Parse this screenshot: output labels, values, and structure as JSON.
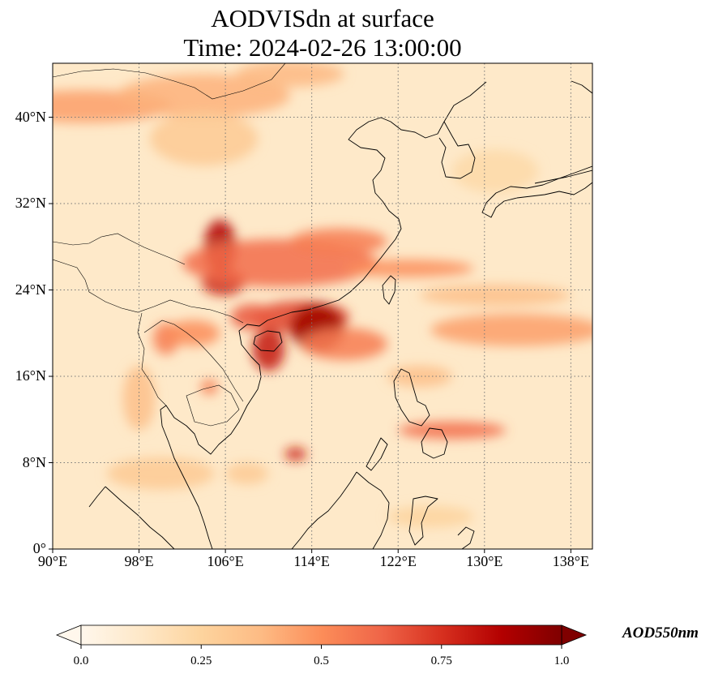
{
  "title": {
    "line1": "AODVISdn at surface",
    "line2": "Time: 2024-02-26 13:00:00"
  },
  "map": {
    "projection": "PlateCarree",
    "extent": {
      "lon_min": 90,
      "lon_max": 140,
      "lat_min": 0,
      "lat_max": 45
    },
    "gridlines": {
      "style": "dotted",
      "color": "#777777"
    },
    "lat_ticks": [
      {
        "value": 0,
        "label": "0°"
      },
      {
        "value": 8,
        "label": "8°N"
      },
      {
        "value": 16,
        "label": "16°N"
      },
      {
        "value": 24,
        "label": "24°N"
      },
      {
        "value": 32,
        "label": "32°N"
      },
      {
        "value": 40,
        "label": "40°N"
      }
    ],
    "lon_ticks": [
      {
        "value": 90,
        "label": "90°E"
      },
      {
        "value": 98,
        "label": "98°E"
      },
      {
        "value": 106,
        "label": "106°E"
      },
      {
        "value": 114,
        "label": "114°E"
      },
      {
        "value": 122,
        "label": "122°E"
      },
      {
        "value": 130,
        "label": "130°E"
      },
      {
        "value": 138,
        "label": "138°E"
      }
    ],
    "aod_features": [
      {
        "lon": 93,
        "lat": 41,
        "rx": 8,
        "ry": 1.5,
        "value": 0.45
      },
      {
        "lon": 104,
        "lat": 42,
        "rx": 8,
        "ry": 2,
        "value": 0.4
      },
      {
        "lon": 112,
        "lat": 44,
        "rx": 5,
        "ry": 1.2,
        "value": 0.38
      },
      {
        "lon": 104,
        "lat": 38,
        "rx": 5,
        "ry": 2.5,
        "value": 0.3
      },
      {
        "lon": 105.5,
        "lat": 28,
        "rx": 1.5,
        "ry": 2.5,
        "value": 0.88
      },
      {
        "lon": 105.8,
        "lat": 24.7,
        "rx": 2,
        "ry": 1.2,
        "value": 0.8
      },
      {
        "lon": 111,
        "lat": 26.5,
        "rx": 9,
        "ry": 2.2,
        "value": 0.6
      },
      {
        "lon": 116.5,
        "lat": 28.5,
        "rx": 4.5,
        "ry": 1.2,
        "value": 0.55
      },
      {
        "lon": 113,
        "lat": 21.5,
        "rx": 4.5,
        "ry": 1.5,
        "value": 0.7
      },
      {
        "lon": 114.5,
        "lat": 20.5,
        "rx": 2.5,
        "ry": 2.2,
        "value": 0.92
      },
      {
        "lon": 110,
        "lat": 18.5,
        "rx": 1.5,
        "ry": 2,
        "value": 0.82
      },
      {
        "lon": 108.5,
        "lat": 21.5,
        "rx": 2,
        "ry": 1.2,
        "value": 0.65
      },
      {
        "lon": 117,
        "lat": 19,
        "rx": 4,
        "ry": 1.5,
        "value": 0.55
      },
      {
        "lon": 100.5,
        "lat": 19.5,
        "rx": 1.2,
        "ry": 1.5,
        "value": 0.55
      },
      {
        "lon": 103,
        "lat": 20,
        "rx": 2.5,
        "ry": 1.2,
        "value": 0.5
      },
      {
        "lon": 98,
        "lat": 14,
        "rx": 1.5,
        "ry": 3,
        "value": 0.35
      },
      {
        "lon": 104.5,
        "lat": 15,
        "rx": 0.8,
        "ry": 0.7,
        "value": 0.55
      },
      {
        "lon": 112.5,
        "lat": 8.8,
        "rx": 1,
        "ry": 0.6,
        "value": 0.8
      },
      {
        "lon": 127,
        "lat": 11,
        "rx": 5,
        "ry": 0.8,
        "value": 0.6
      },
      {
        "lon": 124,
        "lat": 16,
        "rx": 3,
        "ry": 1,
        "value": 0.35
      },
      {
        "lon": 133,
        "lat": 20.3,
        "rx": 8,
        "ry": 1.5,
        "value": 0.45
      },
      {
        "lon": 131,
        "lat": 23.5,
        "rx": 7,
        "ry": 1,
        "value": 0.35
      },
      {
        "lon": 123,
        "lat": 26,
        "rx": 6,
        "ry": 0.8,
        "value": 0.5
      },
      {
        "lon": 100,
        "lat": 7,
        "rx": 5,
        "ry": 1.5,
        "value": 0.3
      },
      {
        "lon": 108,
        "lat": 7,
        "rx": 2,
        "ry": 1,
        "value": 0.3
      },
      {
        "lon": 125,
        "lat": 3,
        "rx": 4,
        "ry": 1,
        "value": 0.25
      },
      {
        "lon": 131,
        "lat": 35,
        "rx": 4,
        "ry": 2,
        "value": 0.22
      }
    ]
  },
  "colorbar": {
    "label": "AOD550nm",
    "min": 0.0,
    "max": 1.0,
    "extend": "both",
    "colormap": "OrRd",
    "stops": [
      "#fff7ec",
      "#fee8c8",
      "#fdd49e",
      "#fdbb84",
      "#fc8d59",
      "#ef6548",
      "#d7301f",
      "#b30000",
      "#7f0000"
    ],
    "ticks": [
      {
        "value": 0.0,
        "label": "0.0"
      },
      {
        "value": 0.25,
        "label": "0.25"
      },
      {
        "value": 0.5,
        "label": "0.5"
      },
      {
        "value": 0.75,
        "label": "0.75"
      },
      {
        "value": 1.0,
        "label": "1.0"
      }
    ]
  }
}
